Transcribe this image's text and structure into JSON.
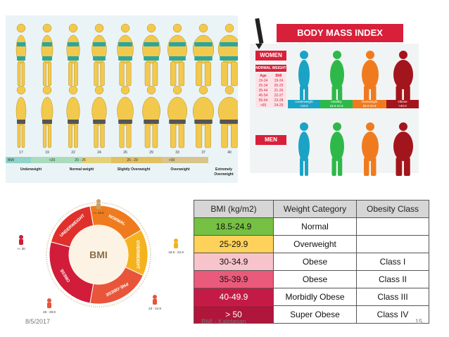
{
  "figures_panel": {
    "bmi_prefix": "BMI",
    "numbers": [
      "17",
      "19",
      "22",
      "24",
      "26",
      "29",
      "33",
      "37",
      "40"
    ],
    "bar": [
      "<20",
      "20 - 25",
      "26 - 29",
      ">30"
    ],
    "categories": [
      "Underweight",
      "Normal weight",
      "Slightly Overweight",
      "Overweight",
      "Extremely Overweight"
    ]
  },
  "index_panel": {
    "title": "BODY MASS INDEX",
    "women": "WOMEN",
    "normal_weight": "NORMAL WEIGHT",
    "table_header": [
      "Age",
      "BMI"
    ],
    "table_rows": [
      [
        "19-24",
        "19-24"
      ],
      [
        "25-34",
        "20-25"
      ],
      [
        "35-44",
        "21-26"
      ],
      [
        "45-54",
        "22-27"
      ],
      [
        "55-64",
        "23-28"
      ],
      [
        ">65",
        "24-29"
      ]
    ],
    "men": "MEN",
    "strip": [
      {
        "label": "Underweight",
        "range": "<18.5",
        "color": "#1ba3c6"
      },
      {
        "label": "Healthy",
        "range": "18.5-24.9",
        "color": "#2fb84a"
      },
      {
        "label": "Overweight",
        "range": "25.0-29.9",
        "color": "#f07b1f"
      },
      {
        "label": "Obese",
        "range": ">40.0",
        "color": "#a3151c"
      }
    ]
  },
  "wheel_panel": {
    "center": "BMI",
    "segments": [
      "UNDERWEIGHT",
      "NORMAL",
      "OVERWEIGHT",
      "PRE-OBESE",
      "OBESE"
    ],
    "range_labels": [
      "<= 18.5",
      "18.5 - 22.9",
      "23 - 24.9",
      "25 - 29.9",
      ">= 30"
    ]
  },
  "bmi_table": {
    "headers": [
      "BMI (kg/m2)",
      "Weight Category",
      "Obesity Class"
    ],
    "rows": [
      {
        "bmi": "18.5-24.9",
        "category": "Normal",
        "class": "",
        "color": "#76c043"
      },
      {
        "bmi": "25-29.9",
        "category": "Overweight",
        "class": "",
        "color": "#fdd15a"
      },
      {
        "bmi": "30-34.9",
        "category": "Obese",
        "class": "Class I",
        "color": "#f7c4cc"
      },
      {
        "bmi": "35-39.9",
        "category": "Obese",
        "class": "Class II",
        "color": "#ea5a7a"
      },
      {
        "bmi": "40-49.9",
        "category": "Morbidly Obese",
        "class": "Class III",
        "color": "#c41b46"
      },
      {
        "bmi": "> 50",
        "category": "Super Obese",
        "class": "Class IV",
        "color": "#b0153a"
      }
    ]
  },
  "footer": {
    "date": "8/5/2017",
    "author": "BMI - Kalidasan",
    "page": "15"
  }
}
